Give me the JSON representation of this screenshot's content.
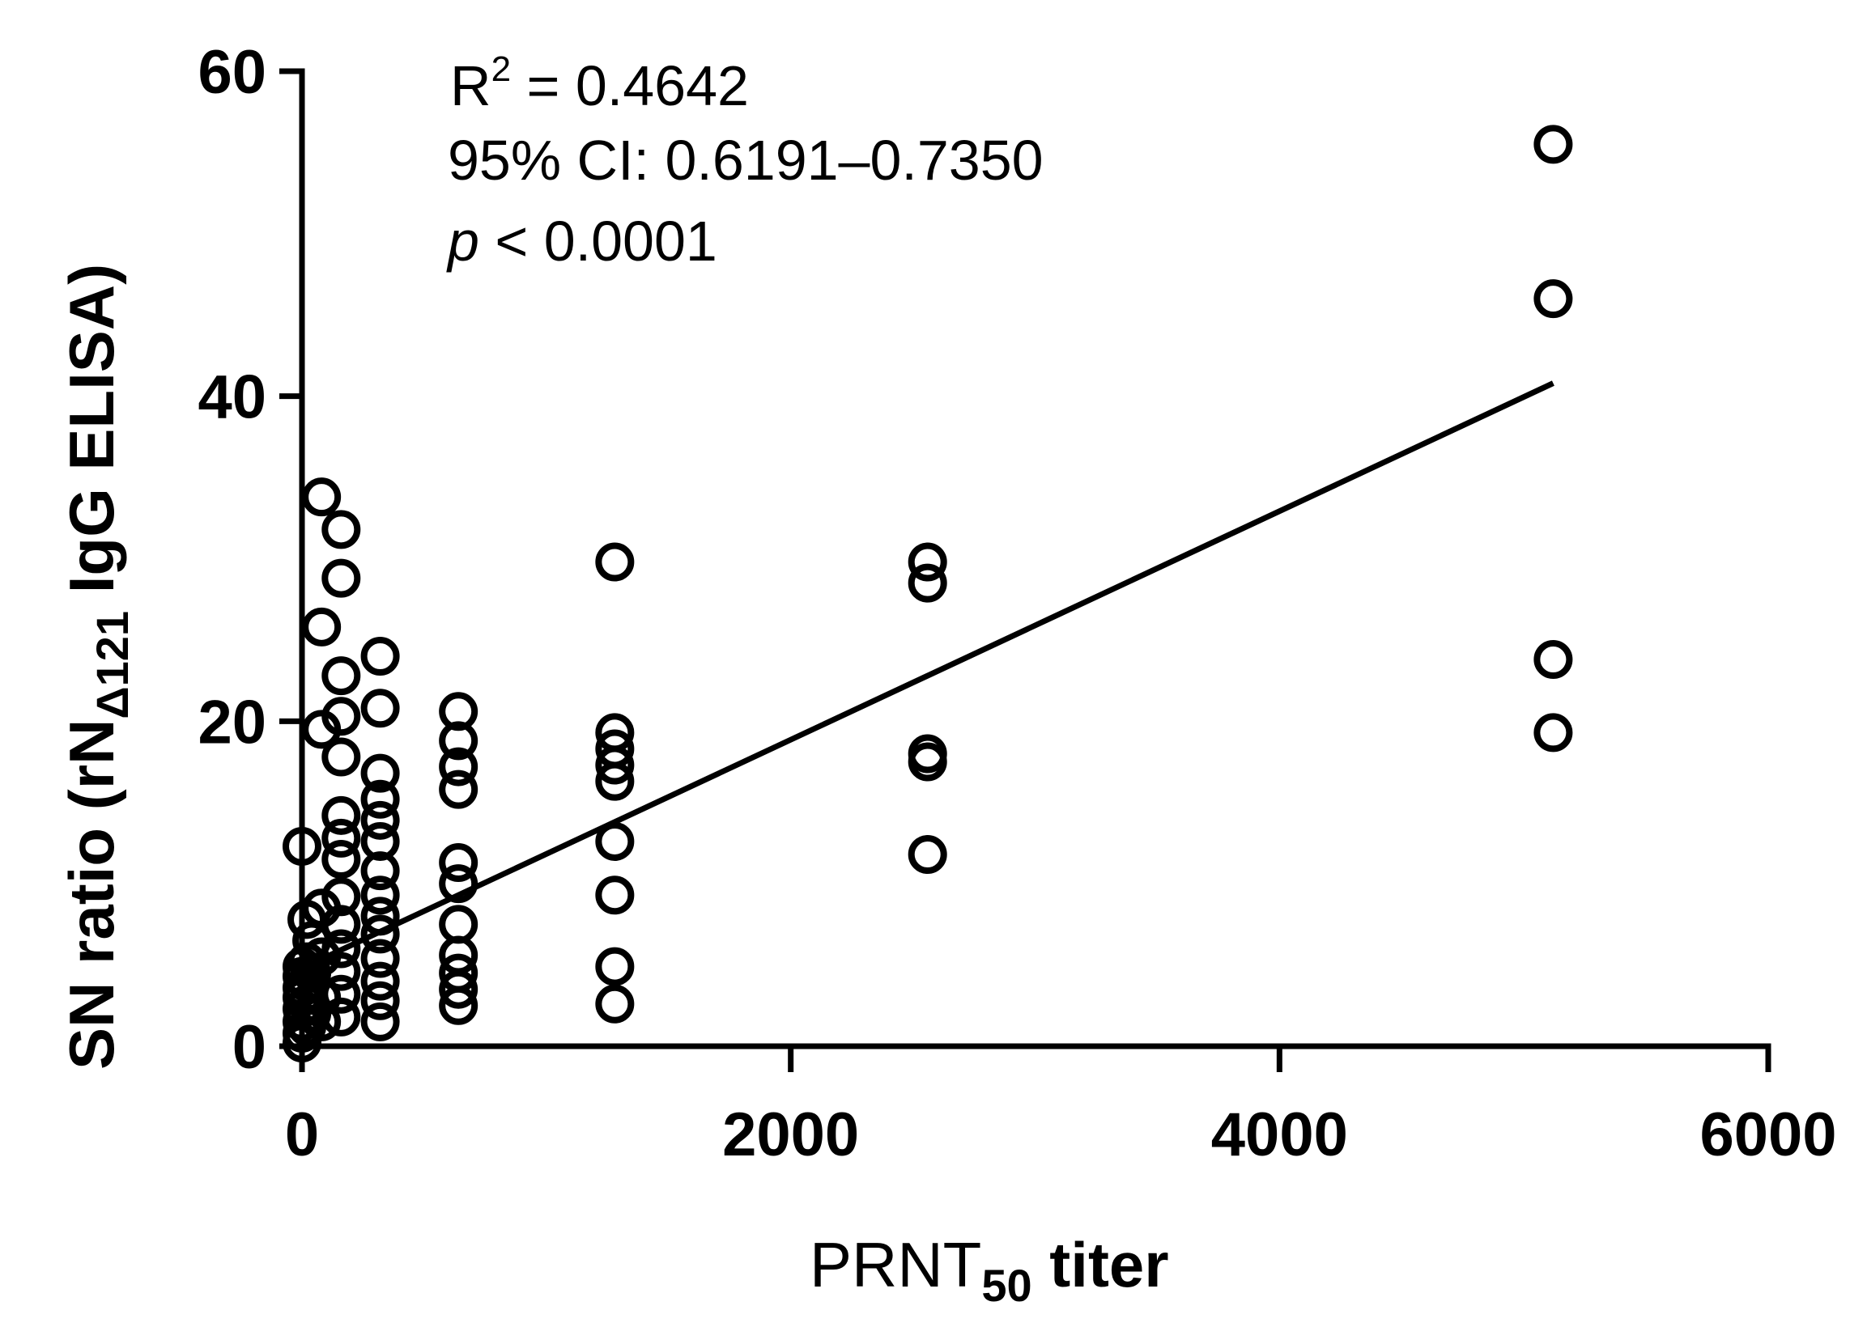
{
  "chart_data": {
    "type": "scatter",
    "title": "",
    "xlabel": {
      "main": "PRNT",
      "sub": "50",
      "rest": " titer"
    },
    "ylabel": {
      "main": "SN ratio (rN",
      "sub": "Δ121",
      "rest": " IgG ELISA)"
    },
    "xlim": [
      0,
      6000
    ],
    "ylim": [
      0,
      60
    ],
    "xticks": [
      "0",
      "2000",
      "4000",
      "6000"
    ],
    "yticks": [
      "0",
      "20",
      "40",
      "60"
    ],
    "annotations": {
      "r2_base": "R",
      "r2_sup": "2",
      "r2_value": " = 0.4642",
      "ci": "95% CI: 0.6191–0.7350",
      "p_symbol": "p",
      "p_value": " < 0.0001"
    },
    "regression_line": {
      "x": [
        0,
        5120
      ],
      "y": [
        4.8,
        40.8
      ]
    },
    "points": [
      {
        "x": 0,
        "y": 0.2
      },
      {
        "x": 0,
        "y": 0.8
      },
      {
        "x": 0,
        "y": 1.5
      },
      {
        "x": 0,
        "y": 2.3
      },
      {
        "x": 0,
        "y": 3.0
      },
      {
        "x": 0,
        "y": 3.6
      },
      {
        "x": 0,
        "y": 4.3
      },
      {
        "x": 0,
        "y": 4.9
      },
      {
        "x": 0,
        "y": 12.3
      },
      {
        "x": 20,
        "y": 1.2
      },
      {
        "x": 20,
        "y": 2.6
      },
      {
        "x": 20,
        "y": 3.9
      },
      {
        "x": 20,
        "y": 5.2
      },
      {
        "x": 20,
        "y": 7.8
      },
      {
        "x": 40,
        "y": 2.0
      },
      {
        "x": 40,
        "y": 4.5
      },
      {
        "x": 40,
        "y": 6.5
      },
      {
        "x": 80,
        "y": 1.5
      },
      {
        "x": 80,
        "y": 3.0
      },
      {
        "x": 80,
        "y": 5.5
      },
      {
        "x": 80,
        "y": 8.5
      },
      {
        "x": 80,
        "y": 19.5
      },
      {
        "x": 80,
        "y": 25.8
      },
      {
        "x": 80,
        "y": 33.8
      },
      {
        "x": 160,
        "y": 1.8
      },
      {
        "x": 160,
        "y": 3.2
      },
      {
        "x": 160,
        "y": 4.6
      },
      {
        "x": 160,
        "y": 6.0
      },
      {
        "x": 160,
        "y": 7.5
      },
      {
        "x": 160,
        "y": 9.2
      },
      {
        "x": 160,
        "y": 11.5
      },
      {
        "x": 160,
        "y": 12.8
      },
      {
        "x": 160,
        "y": 14.2
      },
      {
        "x": 160,
        "y": 17.8
      },
      {
        "x": 160,
        "y": 20.3
      },
      {
        "x": 160,
        "y": 22.8
      },
      {
        "x": 160,
        "y": 28.8
      },
      {
        "x": 160,
        "y": 31.8
      },
      {
        "x": 320,
        "y": 1.5
      },
      {
        "x": 320,
        "y": 2.8
      },
      {
        "x": 320,
        "y": 4.0
      },
      {
        "x": 320,
        "y": 5.4
      },
      {
        "x": 320,
        "y": 6.9
      },
      {
        "x": 320,
        "y": 8.0
      },
      {
        "x": 320,
        "y": 9.3
      },
      {
        "x": 320,
        "y": 10.8
      },
      {
        "x": 320,
        "y": 12.6
      },
      {
        "x": 320,
        "y": 13.9
      },
      {
        "x": 320,
        "y": 15.2
      },
      {
        "x": 320,
        "y": 16.8
      },
      {
        "x": 320,
        "y": 20.8
      },
      {
        "x": 320,
        "y": 24.0
      },
      {
        "x": 640,
        "y": 2.5
      },
      {
        "x": 640,
        "y": 3.5
      },
      {
        "x": 640,
        "y": 4.5
      },
      {
        "x": 640,
        "y": 5.6
      },
      {
        "x": 640,
        "y": 7.5
      },
      {
        "x": 640,
        "y": 10.0
      },
      {
        "x": 640,
        "y": 11.3
      },
      {
        "x": 640,
        "y": 15.8
      },
      {
        "x": 640,
        "y": 17.2
      },
      {
        "x": 640,
        "y": 18.8
      },
      {
        "x": 640,
        "y": 20.6
      },
      {
        "x": 1280,
        "y": 2.6
      },
      {
        "x": 1280,
        "y": 4.9
      },
      {
        "x": 1280,
        "y": 9.3
      },
      {
        "x": 1280,
        "y": 12.6
      },
      {
        "x": 1280,
        "y": 16.3
      },
      {
        "x": 1280,
        "y": 17.3
      },
      {
        "x": 1280,
        "y": 18.3
      },
      {
        "x": 1280,
        "y": 19.3
      },
      {
        "x": 1280,
        "y": 29.8
      },
      {
        "x": 2560,
        "y": 11.8
      },
      {
        "x": 2560,
        "y": 17.5
      },
      {
        "x": 2560,
        "y": 18.0
      },
      {
        "x": 2560,
        "y": 28.5
      },
      {
        "x": 2560,
        "y": 29.8
      },
      {
        "x": 5120,
        "y": 19.3
      },
      {
        "x": 5120,
        "y": 23.8
      },
      {
        "x": 5120,
        "y": 46.0
      },
      {
        "x": 5120,
        "y": 55.5
      }
    ]
  }
}
